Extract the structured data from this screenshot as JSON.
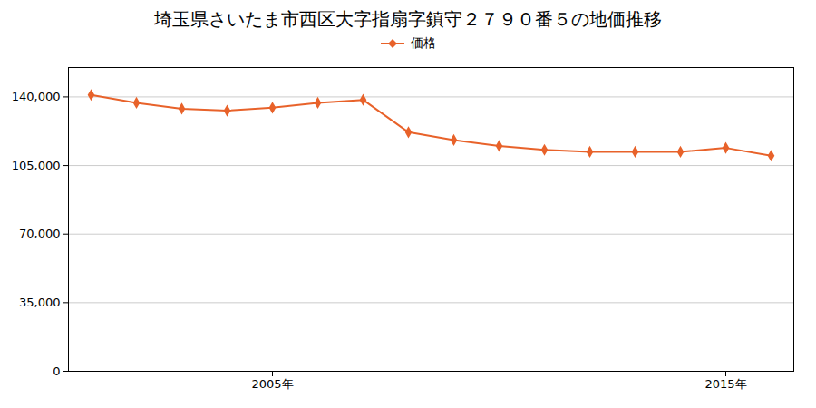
{
  "chart_data": {
    "type": "line",
    "title": "埼玉県さいたま市西区大字指扇字鎮守２７９０番５の地価推移",
    "x": [
      2001,
      2002,
      2003,
      2004,
      2005,
      2006,
      2007,
      2008,
      2009,
      2010,
      2011,
      2012,
      2013,
      2014,
      2015,
      2016
    ],
    "series": [
      {
        "name": "価格",
        "color": "#e8622a",
        "values": [
          141000,
          137000,
          134000,
          133000,
          134500,
          137000,
          138500,
          122000,
          118000,
          115000,
          113000,
          112000,
          112000,
          112000,
          114000,
          110000
        ]
      }
    ],
    "marker": "diamond",
    "xlim": [
      2000.5,
      2016.5
    ],
    "xticks": [
      {
        "value": 2005,
        "label": "2005年"
      },
      {
        "value": 2015,
        "label": "2015年"
      }
    ],
    "ylim": [
      0,
      155000
    ],
    "yticks": [
      0,
      {
        "value": 35000,
        "label": "35,000"
      },
      {
        "value": 70000,
        "label": "70,000"
      },
      {
        "value": 105000,
        "label": "105,000"
      },
      {
        "value": 140000,
        "label": "140,000"
      }
    ],
    "grid": "y",
    "legend": "top"
  }
}
